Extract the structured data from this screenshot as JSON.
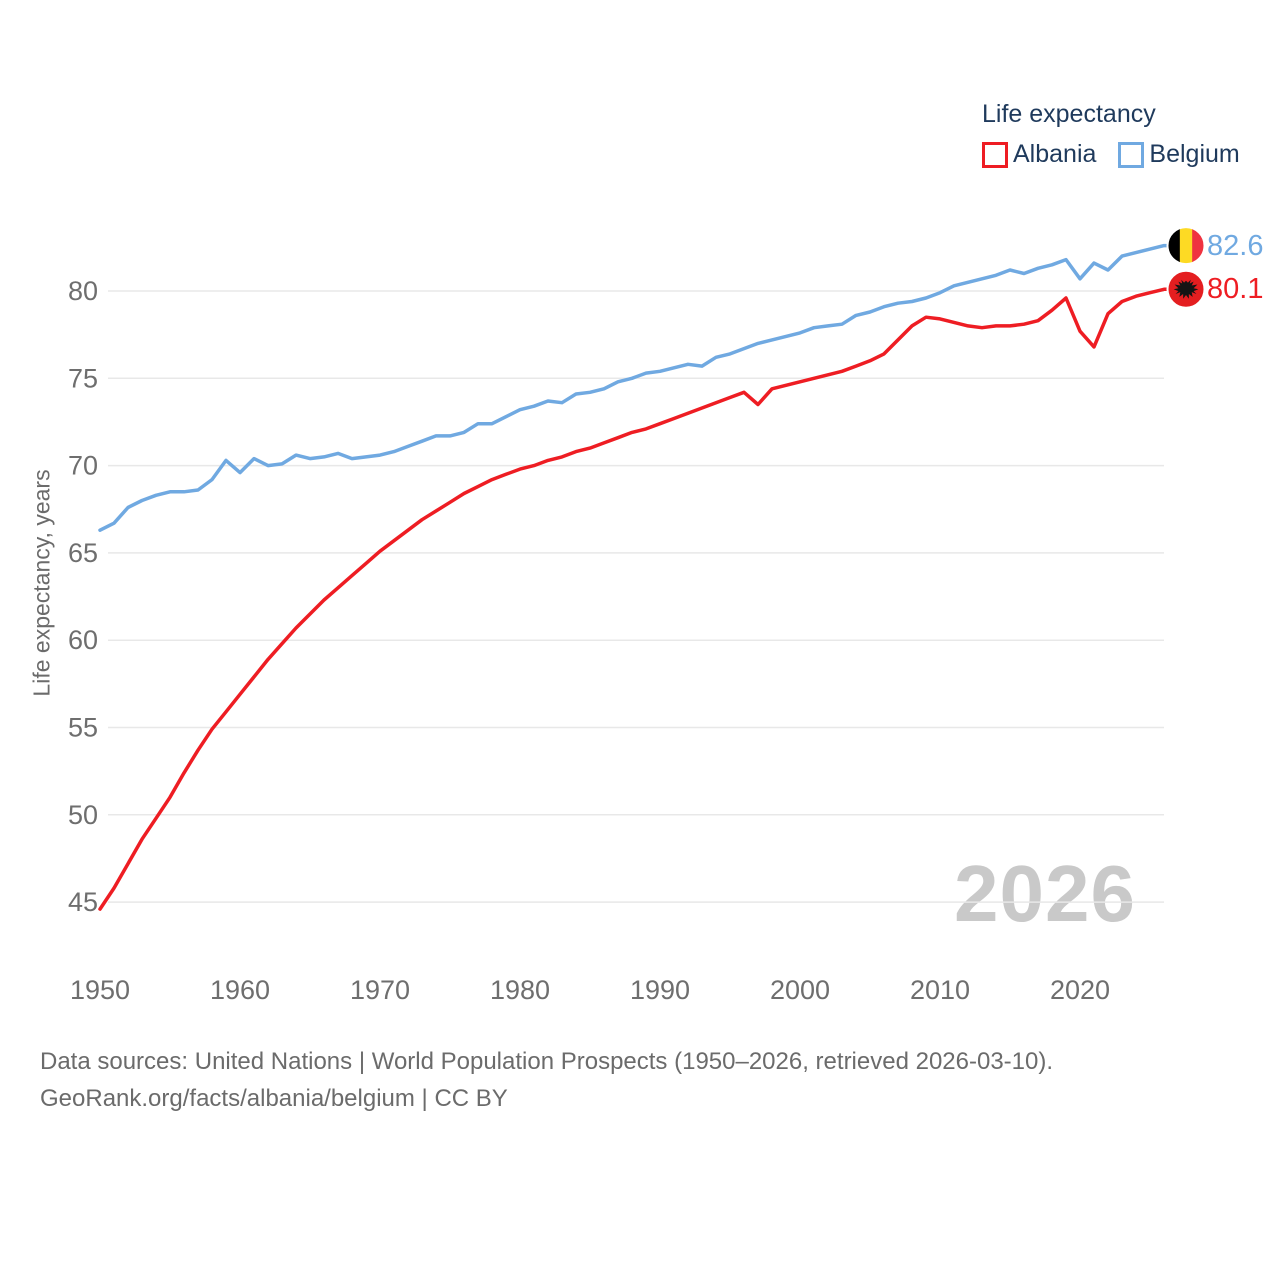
{
  "legend": {
    "title": "Life expectancy",
    "series": [
      {
        "label": "Albania",
        "color": "#ee1d23"
      },
      {
        "label": "Belgium",
        "color": "#70a9e1"
      }
    ]
  },
  "y_axis": {
    "title": "Life expectancy, years",
    "ticks": [
      45,
      50,
      55,
      60,
      65,
      70,
      75,
      80
    ]
  },
  "x_axis": {
    "ticks": [
      1950,
      1960,
      1970,
      1980,
      1990,
      2000,
      2010,
      2020
    ]
  },
  "watermark": "2026",
  "end_labels": [
    {
      "series": "Belgium",
      "value": "82.6",
      "color": "#70a9e1"
    },
    {
      "series": "Albania",
      "value": "80.1",
      "color": "#ee1d23"
    }
  ],
  "flags": {
    "belgium": {
      "stripes": [
        "#000000",
        "#fdda24",
        "#ef3340"
      ]
    },
    "albania": {
      "background": "#e41e20",
      "eagle": "#141414"
    }
  },
  "footer": {
    "line1": "Data sources: United Nations | World Population Prospects (1950–2026, retrieved 2026-03-10).",
    "line2": "GeoRank.org/facts/albania/belgium | CC BY"
  },
  "chart_data": {
    "type": "line",
    "title": "Life expectancy",
    "ylabel": "Life expectancy, years",
    "xlim": [
      1950,
      2026
    ],
    "ylim": [
      44,
      83.5
    ],
    "grid": "horizontal",
    "legend_position": "top-right",
    "x": [
      1950,
      1951,
      1952,
      1953,
      1954,
      1955,
      1956,
      1957,
      1958,
      1959,
      1960,
      1961,
      1962,
      1963,
      1964,
      1965,
      1966,
      1967,
      1968,
      1969,
      1970,
      1971,
      1972,
      1973,
      1974,
      1975,
      1976,
      1977,
      1978,
      1979,
      1980,
      1981,
      1982,
      1983,
      1984,
      1985,
      1986,
      1987,
      1988,
      1989,
      1990,
      1991,
      1992,
      1993,
      1994,
      1995,
      1996,
      1997,
      1998,
      1999,
      2000,
      2001,
      2002,
      2003,
      2004,
      2005,
      2006,
      2007,
      2008,
      2009,
      2010,
      2011,
      2012,
      2013,
      2014,
      2015,
      2016,
      2017,
      2018,
      2019,
      2020,
      2021,
      2022,
      2023,
      2024,
      2025,
      2026
    ],
    "series": [
      {
        "name": "Albania",
        "color": "#ee1d23",
        "end_value": 80.1,
        "values": [
          44.6,
          45.8,
          47.2,
          48.6,
          49.8,
          51.0,
          52.4,
          53.7,
          54.9,
          55.9,
          56.9,
          57.9,
          58.9,
          59.8,
          60.7,
          61.5,
          62.3,
          63.0,
          63.7,
          64.4,
          65.1,
          65.7,
          66.3,
          66.9,
          67.4,
          67.9,
          68.4,
          68.8,
          69.2,
          69.5,
          69.8,
          70.0,
          70.3,
          70.5,
          70.8,
          71.0,
          71.3,
          71.6,
          71.9,
          72.1,
          72.4,
          72.7,
          73.0,
          73.3,
          73.6,
          73.9,
          74.2,
          73.5,
          74.4,
          74.6,
          74.8,
          75.0,
          75.2,
          75.4,
          75.7,
          76.0,
          76.4,
          77.2,
          78.0,
          78.5,
          78.4,
          78.2,
          78.0,
          77.9,
          78.0,
          78.0,
          78.1,
          78.3,
          78.9,
          79.6,
          77.7,
          76.8,
          78.7,
          79.4,
          79.7,
          79.9,
          80.1
        ]
      },
      {
        "name": "Belgium",
        "color": "#70a9e1",
        "end_value": 82.6,
        "values": [
          66.3,
          66.7,
          67.6,
          68.0,
          68.3,
          68.5,
          68.5,
          68.6,
          69.2,
          70.3,
          69.6,
          70.4,
          70.0,
          70.1,
          70.6,
          70.4,
          70.5,
          70.7,
          70.4,
          70.5,
          70.6,
          70.8,
          71.1,
          71.4,
          71.7,
          71.7,
          71.9,
          72.4,
          72.4,
          72.8,
          73.2,
          73.4,
          73.7,
          73.6,
          74.1,
          74.2,
          74.4,
          74.8,
          75.0,
          75.3,
          75.4,
          75.6,
          75.8,
          75.7,
          76.2,
          76.4,
          76.7,
          77.0,
          77.2,
          77.4,
          77.6,
          77.9,
          78.0,
          78.1,
          78.6,
          78.8,
          79.1,
          79.3,
          79.4,
          79.6,
          79.9,
          80.3,
          80.5,
          80.7,
          80.9,
          81.2,
          81.0,
          81.3,
          81.5,
          81.8,
          80.7,
          81.6,
          81.2,
          82.0,
          82.2,
          82.4,
          82.6
        ]
      }
    ]
  }
}
